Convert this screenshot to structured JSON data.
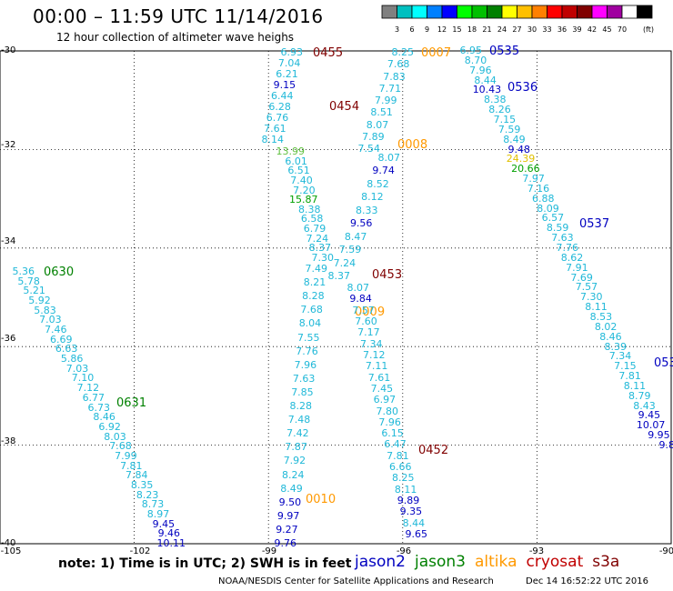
{
  "header": {
    "title": "00:00 – 11:59 UTC 11/14/2016",
    "subtitle": "12 hour collection of altimeter wave heighs"
  },
  "scale": {
    "unit": "(ft)",
    "bins": [
      {
        "color": "#808080",
        "label": ""
      },
      {
        "color": "#00c0c0",
        "label": "3"
      },
      {
        "color": "#00ffff",
        "label": "6"
      },
      {
        "color": "#0080ff",
        "label": "9"
      },
      {
        "color": "#0000ff",
        "label": "12"
      },
      {
        "color": "#00ff00",
        "label": "15"
      },
      {
        "color": "#00c000",
        "label": "18"
      },
      {
        "color": "#008000",
        "label": "21"
      },
      {
        "color": "#ffff00",
        "label": "24"
      },
      {
        "color": "#ffc000",
        "label": "27"
      },
      {
        "color": "#ff8000",
        "label": "30"
      },
      {
        "color": "#ff0000",
        "label": "33"
      },
      {
        "color": "#c00000",
        "label": "36"
      },
      {
        "color": "#800000",
        "label": "39"
      },
      {
        "color": "#ff00ff",
        "label": "42"
      },
      {
        "color": "#a000a0",
        "label": "45"
      },
      {
        "color": "#ffffff",
        "label": "70"
      },
      {
        "color": "#000000",
        "label": ""
      }
    ]
  },
  "axes": {
    "lat_ticks": [
      "-30",
      "-32",
      "-34",
      "-36",
      "-38",
      "-40"
    ],
    "lon_ticks": [
      "-105",
      "-102",
      "-99",
      "-96",
      "-93",
      "-90"
    ]
  },
  "colors": {
    "light": "#20b8d8",
    "blue": "#0000c0",
    "green": "#00a000",
    "lightgreen": "#60c040",
    "orange": "#ff9900",
    "yellow": "#e0c000",
    "jason2": "#0000c0",
    "jason3": "#008000",
    "altika": "#ff9900",
    "cryosat": "#c00000",
    "s3a": "#800000"
  },
  "passes": [
    {
      "text": "0455",
      "sat": "s3a"
    },
    {
      "text": "0454",
      "sat": "s3a"
    },
    {
      "text": "0453",
      "sat": "s3a"
    },
    {
      "text": "0452",
      "sat": "s3a"
    },
    {
      "text": "0007",
      "sat": "altika"
    },
    {
      "text": "0008",
      "sat": "altika"
    },
    {
      "text": "0009",
      "sat": "altika"
    },
    {
      "text": "0010",
      "sat": "altika"
    },
    {
      "text": "0535",
      "sat": "jason2"
    },
    {
      "text": "0536",
      "sat": "jason2"
    },
    {
      "text": "0537",
      "sat": "jason2"
    },
    {
      "text": "053",
      "sat": "jason2"
    },
    {
      "text": "0630",
      "sat": "jason3"
    },
    {
      "text": "0631",
      "sat": "jason3"
    }
  ],
  "tracks": [
    {
      "name": "s3a-track-a",
      "values": [
        [
          "6.93",
          "light"
        ],
        [
          "7.04",
          "light"
        ],
        [
          "6.21",
          "light"
        ],
        [
          "9.15",
          "blue"
        ],
        [
          "6.44",
          "light"
        ],
        [
          "6.28",
          "light"
        ],
        [
          "6.76",
          "light"
        ],
        [
          "7.61",
          "light"
        ],
        [
          "8.14",
          "light"
        ],
        [
          "13.99",
          "lightgreen"
        ],
        [
          "6.01",
          "light"
        ],
        [
          "6.51",
          "light"
        ],
        [
          "7.40",
          "light"
        ],
        [
          "7.20",
          "light"
        ],
        [
          "15.87",
          "green"
        ],
        [
          "8.38",
          "light"
        ],
        [
          "6.58",
          "light"
        ],
        [
          "6.79",
          "light"
        ],
        [
          "7.24",
          "light"
        ],
        [
          "8.37",
          "light"
        ],
        [
          "7.30",
          "light"
        ],
        [
          "7.49",
          "light"
        ],
        [
          "8.21",
          "light"
        ],
        [
          "8.28",
          "light"
        ],
        [
          "7.68",
          "light"
        ],
        [
          "8.04",
          "light"
        ],
        [
          "7.55",
          "light"
        ],
        [
          "7.76",
          "light"
        ],
        [
          "7.96",
          "light"
        ],
        [
          "7.63",
          "light"
        ],
        [
          "7.85",
          "light"
        ],
        [
          "8.28",
          "light"
        ],
        [
          "7.48",
          "light"
        ],
        [
          "7.42",
          "light"
        ],
        [
          "7.87",
          "light"
        ],
        [
          "7.92",
          "light"
        ],
        [
          "8.24",
          "light"
        ],
        [
          "8.49",
          "light"
        ],
        [
          "9.50",
          "blue"
        ],
        [
          "9.97",
          "blue"
        ],
        [
          "9.27",
          "blue"
        ],
        [
          "9.76",
          "blue"
        ]
      ]
    },
    {
      "name": "altika-track",
      "values": [
        [
          "8.25",
          "light"
        ],
        [
          "7.68",
          "light"
        ],
        [
          "7.83",
          "light"
        ],
        [
          "7.71",
          "light"
        ],
        [
          "7.99",
          "light"
        ],
        [
          "8.51",
          "light"
        ],
        [
          "8.07",
          "light"
        ],
        [
          "7.89",
          "light"
        ],
        [
          "7.54",
          "light"
        ],
        [
          "8.07",
          "light"
        ],
        [
          "9.74",
          "blue"
        ],
        [
          "8.52",
          "light"
        ],
        [
          "8.12",
          "light"
        ],
        [
          "8.33",
          "light"
        ],
        [
          "9.56",
          "blue"
        ],
        [
          "8.47",
          "light"
        ],
        [
          "7.59",
          "light"
        ],
        [
          "7.24",
          "light"
        ],
        [
          "8.37",
          "light"
        ],
        [
          "8.07",
          "light"
        ],
        [
          "9.84",
          "blue"
        ],
        [
          "7.57",
          "light"
        ],
        [
          "7.60",
          "light"
        ],
        [
          "7.17",
          "light"
        ],
        [
          "7.34",
          "light"
        ],
        [
          "7.12",
          "light"
        ],
        [
          "7.11",
          "light"
        ],
        [
          "7.61",
          "light"
        ],
        [
          "7.45",
          "light"
        ],
        [
          "6.97",
          "light"
        ],
        [
          "7.80",
          "light"
        ],
        [
          "7.96",
          "light"
        ],
        [
          "6.15",
          "light"
        ],
        [
          "6.47",
          "light"
        ],
        [
          "7.81",
          "light"
        ],
        [
          "6.66",
          "light"
        ],
        [
          "8.25",
          "light"
        ],
        [
          "8.11",
          "light"
        ],
        [
          "9.89",
          "blue"
        ],
        [
          "9.35",
          "blue"
        ],
        [
          "8.44",
          "light"
        ],
        [
          "9.65",
          "blue"
        ]
      ]
    },
    {
      "name": "jason2-track-a",
      "values": [
        [
          "6.95",
          "light"
        ],
        [
          "8.70",
          "light"
        ],
        [
          "7.96",
          "light"
        ],
        [
          "8.44",
          "light"
        ],
        [
          "10.43",
          "blue"
        ],
        [
          "8.38",
          "light"
        ],
        [
          "8.26",
          "light"
        ],
        [
          "7.15",
          "light"
        ],
        [
          "7.59",
          "light"
        ],
        [
          "8.49",
          "light"
        ],
        [
          "9.48",
          "blue"
        ],
        [
          "24.39",
          "yellow"
        ],
        [
          "20.66",
          "green"
        ],
        [
          "7.97",
          "light"
        ],
        [
          "7.16",
          "light"
        ],
        [
          "6.88",
          "light"
        ],
        [
          "8.09",
          "light"
        ],
        [
          "6.57",
          "light"
        ],
        [
          "8.59",
          "light"
        ],
        [
          "7.63",
          "light"
        ],
        [
          "7.76",
          "light"
        ],
        [
          "8.62",
          "light"
        ],
        [
          "7.91",
          "light"
        ],
        [
          "7.69",
          "light"
        ],
        [
          "7.57",
          "light"
        ],
        [
          "7.30",
          "light"
        ],
        [
          "8.11",
          "light"
        ],
        [
          "8.53",
          "light"
        ],
        [
          "8.02",
          "light"
        ],
        [
          "8.46",
          "light"
        ],
        [
          "8.39",
          "light"
        ],
        [
          "7.34",
          "light"
        ],
        [
          "7.15",
          "light"
        ],
        [
          "7.81",
          "light"
        ],
        [
          "8.11",
          "light"
        ],
        [
          "8.79",
          "light"
        ],
        [
          "8.43",
          "light"
        ],
        [
          "9.45",
          "blue"
        ],
        [
          "10.07",
          "blue"
        ],
        [
          "9.95",
          "blue"
        ],
        [
          "9.8",
          "blue"
        ]
      ]
    },
    {
      "name": "jason3-track",
      "values": [
        [
          "5.36",
          "light"
        ],
        [
          "5.78",
          "light"
        ],
        [
          "5.21",
          "light"
        ],
        [
          "5.92",
          "light"
        ],
        [
          "5.83",
          "light"
        ],
        [
          "7.03",
          "light"
        ],
        [
          "7.46",
          "light"
        ],
        [
          "6.69",
          "light"
        ],
        [
          "6.63",
          "light"
        ],
        [
          "5.86",
          "light"
        ],
        [
          "7.03",
          "light"
        ],
        [
          "7.10",
          "light"
        ],
        [
          "7.12",
          "light"
        ],
        [
          "6.77",
          "light"
        ],
        [
          "6.73",
          "light"
        ],
        [
          "8.46",
          "light"
        ],
        [
          "6.92",
          "light"
        ],
        [
          "8.03",
          "light"
        ],
        [
          "7.68",
          "light"
        ],
        [
          "7.99",
          "light"
        ],
        [
          "7.81",
          "light"
        ],
        [
          "7.84",
          "light"
        ],
        [
          "8.35",
          "light"
        ],
        [
          "8.23",
          "light"
        ],
        [
          "8.73",
          "light"
        ],
        [
          "8.97",
          "light"
        ],
        [
          "9.45",
          "blue"
        ],
        [
          "9.46",
          "blue"
        ],
        [
          "10.11",
          "blue"
        ]
      ]
    }
  ],
  "footer": {
    "note": "note: 1) Time is in UTC; 2) SWH is in feet",
    "sats": [
      {
        "text": "jason2",
        "color": "#0000c0"
      },
      {
        "text": "jason3",
        "color": "#008000"
      },
      {
        "text": "altika",
        "color": "#ff9900"
      },
      {
        "text": "cryosat",
        "color": "#c00000"
      },
      {
        "text": "s3a",
        "color": "#800000"
      }
    ],
    "credit": "NOAA/NESDIS Center for Satellite Applications and Research",
    "date": "Dec 14 16:52:22 UTC 2016"
  }
}
